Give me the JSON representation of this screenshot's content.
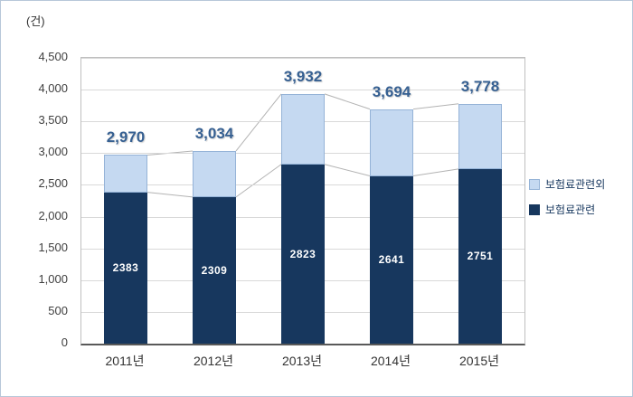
{
  "unit_label": "(건)",
  "legend": [
    {
      "label": "보험료관련외",
      "color": "#c5d9f1",
      "border": "#95b3d7"
    },
    {
      "label": "보험료관련",
      "color": "#17375e",
      "border": "#17375e"
    }
  ],
  "colors": {
    "total_label": "#366092",
    "gridline": "#d9d9d9",
    "axis": "#595959",
    "series_line": "#b3b3b3",
    "bar_inner_label": "#ffffff",
    "outer_border": "#b7c7d9"
  },
  "chart_data": {
    "type": "bar",
    "stacked": true,
    "title": "",
    "xlabel": "",
    "ylabel": "(건)",
    "categories": [
      "2011년",
      "2012년",
      "2013년",
      "2014년",
      "2015년"
    ],
    "series": [
      {
        "name": "보험료관련",
        "values": [
          2383,
          2309,
          2823,
          2641,
          2751
        ],
        "color": "#17375e",
        "labels": [
          "2383",
          "2309",
          "2823",
          "2641",
          "2751"
        ]
      },
      {
        "name": "보험료관련외",
        "values": [
          587,
          725,
          1109,
          1053,
          1027
        ],
        "color": "#c5d9f1",
        "border": "#95b3d7"
      }
    ],
    "totals": [
      2970,
      3034,
      3932,
      3694,
      3778
    ],
    "total_labels": [
      "2,970",
      "3,034",
      "3,932",
      "3,694",
      "3,778"
    ],
    "ylim": [
      0,
      4500
    ],
    "ytick_step": 500,
    "yticks": [
      "0",
      "500",
      "1,000",
      "1,500",
      "2,000",
      "2,500",
      "3,000",
      "3,500",
      "4,000",
      "4,500"
    ],
    "grid": true,
    "legend_position": "right"
  }
}
